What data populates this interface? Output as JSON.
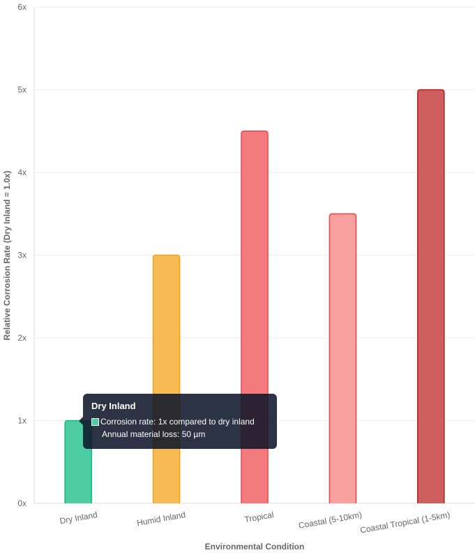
{
  "chart_data": {
    "type": "bar",
    "categories": [
      "Dry Inland",
      "Humid Inland",
      "Tropical",
      "Coastal (5-10km)",
      "Coastal Tropical (1-5km)"
    ],
    "values": [
      1,
      3,
      4.5,
      3.5,
      5
    ],
    "xlabel": "Environmental Condition",
    "ylabel": "Relative Corrosion Rate (Dry Inland = 1.0x)",
    "ylim": [
      0,
      6
    ],
    "yticks": [
      "0x",
      "1x",
      "2x",
      "3x",
      "4x",
      "5x",
      "6x"
    ],
    "grid": true,
    "fills": [
      "#4fcda2",
      "#f7bb55",
      "#f37b7e",
      "#f8a0a0",
      "#cd5f5f"
    ],
    "borders": [
      "#10b981",
      "#f59e0b",
      "#ef4444",
      "#ef4444",
      "#b91c1c"
    ]
  },
  "tooltip": {
    "title": "Dry Inland",
    "line1": "Corrosion rate: 1x compared to dry inland",
    "line2": "Annual material loss: 50 µm",
    "swatch_color": "#4fcda2"
  }
}
